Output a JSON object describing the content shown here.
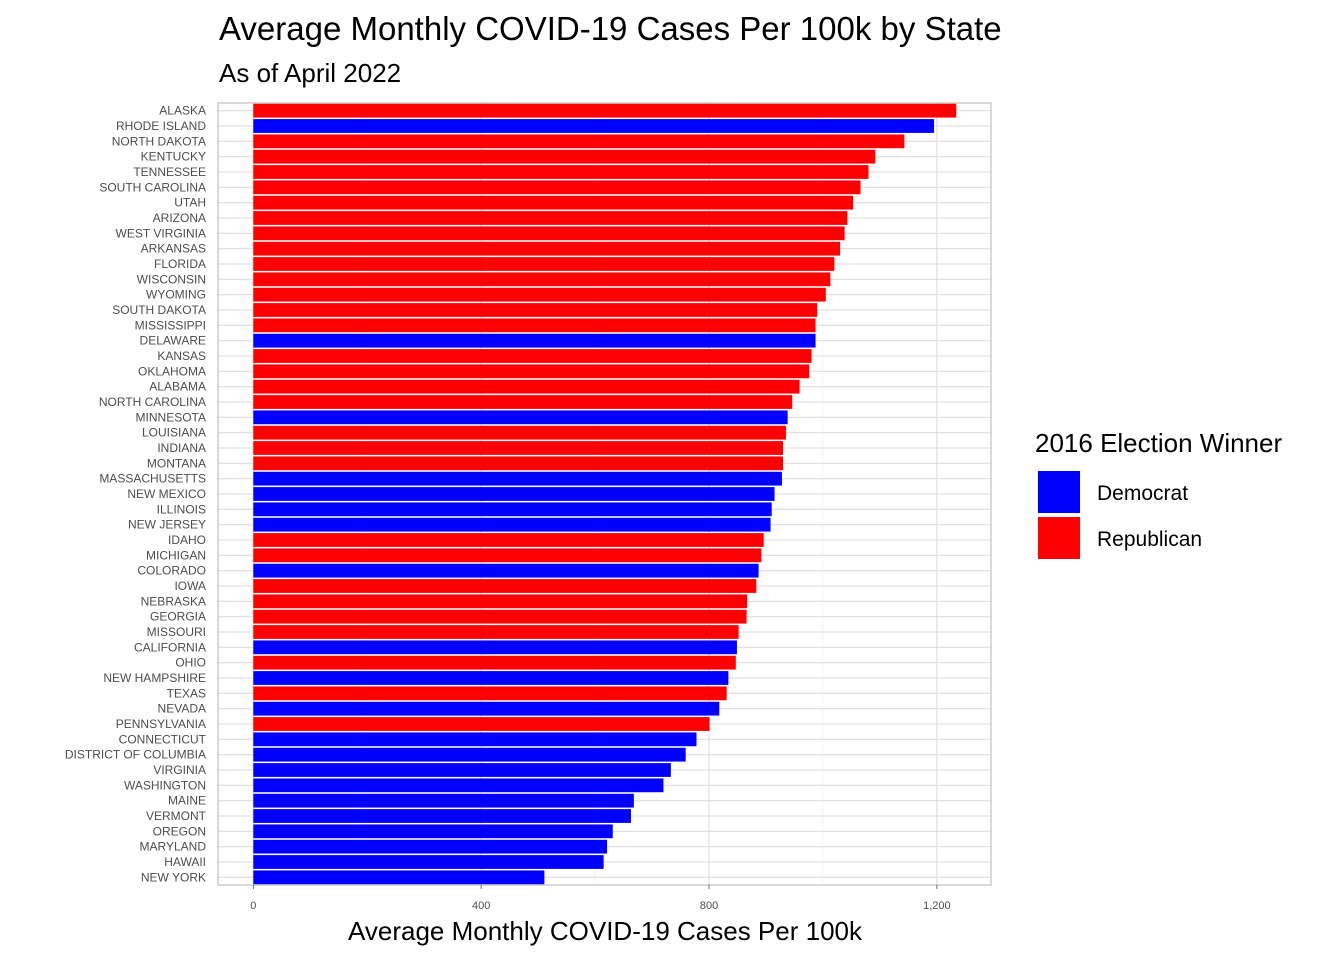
{
  "chart_data": {
    "type": "bar",
    "orientation": "horizontal",
    "title": "Average Monthly COVID-19 Cases Per 100k by State",
    "subtitle": "As of April 2022",
    "xlabel": "Average Monthly COVID-19 Cases Per 100k",
    "ylabel": "",
    "xlim": [
      -62,
      1295
    ],
    "xticks": [
      0,
      400,
      800,
      1200
    ],
    "xtick_labels": [
      "0",
      "400",
      "800",
      "1,200"
    ],
    "grid": true,
    "legend": {
      "title": "2016 Election Winner",
      "placement": "right",
      "entries": [
        {
          "name": "Democrat",
          "color": "#0000ff"
        },
        {
          "name": "Republican",
          "color": "#ff0000"
        }
      ]
    },
    "colors": {
      "Democrat": "#0000ff",
      "Republican": "#ff0000"
    },
    "categories": [
      "ALASKA",
      "RHODE ISLAND",
      "NORTH DAKOTA",
      "KENTUCKY",
      "TENNESSEE",
      "SOUTH CAROLINA",
      "UTAH",
      "ARIZONA",
      "WEST VIRGINIA",
      "ARKANSAS",
      "FLORIDA",
      "WISCONSIN",
      "WYOMING",
      "SOUTH DAKOTA",
      "MISSISSIPPI",
      "DELAWARE",
      "KANSAS",
      "OKLAHOMA",
      "ALABAMA",
      "NORTH CAROLINA",
      "MINNESOTA",
      "LOUISIANA",
      "INDIANA",
      "MONTANA",
      "MASSACHUSETTS",
      "NEW MEXICO",
      "ILLINOIS",
      "NEW JERSEY",
      "IDAHO",
      "MICHIGAN",
      "COLORADO",
      "IOWA",
      "NEBRASKA",
      "GEORGIA",
      "MISSOURI",
      "CALIFORNIA",
      "OHIO",
      "NEW HAMPSHIRE",
      "TEXAS",
      "NEVADA",
      "PENNSYLVANIA",
      "CONNECTICUT",
      "DISTRICT OF COLUMBIA",
      "VIRGINIA",
      "WASHINGTON",
      "MAINE",
      "VERMONT",
      "OREGON",
      "MARYLAND",
      "HAWAII",
      "NEW YORK"
    ],
    "values": [
      1234,
      1195,
      1143,
      1092,
      1080,
      1066,
      1053,
      1043,
      1038,
      1030,
      1020,
      1013,
      1005,
      990,
      987,
      987,
      980,
      976,
      959,
      946,
      938,
      935,
      930,
      930,
      928,
      915,
      910,
      908,
      896,
      892,
      887,
      883,
      867,
      866,
      852,
      849,
      847,
      834,
      831,
      818,
      801,
      778,
      759,
      733,
      720,
      668,
      663,
      631,
      621,
      615,
      511
    ],
    "winner": [
      "Republican",
      "Democrat",
      "Republican",
      "Republican",
      "Republican",
      "Republican",
      "Republican",
      "Republican",
      "Republican",
      "Republican",
      "Republican",
      "Republican",
      "Republican",
      "Republican",
      "Republican",
      "Democrat",
      "Republican",
      "Republican",
      "Republican",
      "Republican",
      "Democrat",
      "Republican",
      "Republican",
      "Republican",
      "Democrat",
      "Democrat",
      "Democrat",
      "Democrat",
      "Republican",
      "Republican",
      "Democrat",
      "Republican",
      "Republican",
      "Republican",
      "Republican",
      "Democrat",
      "Republican",
      "Democrat",
      "Republican",
      "Democrat",
      "Republican",
      "Democrat",
      "Democrat",
      "Democrat",
      "Democrat",
      "Democrat",
      "Democrat",
      "Democrat",
      "Democrat",
      "Democrat",
      "Democrat"
    ]
  }
}
